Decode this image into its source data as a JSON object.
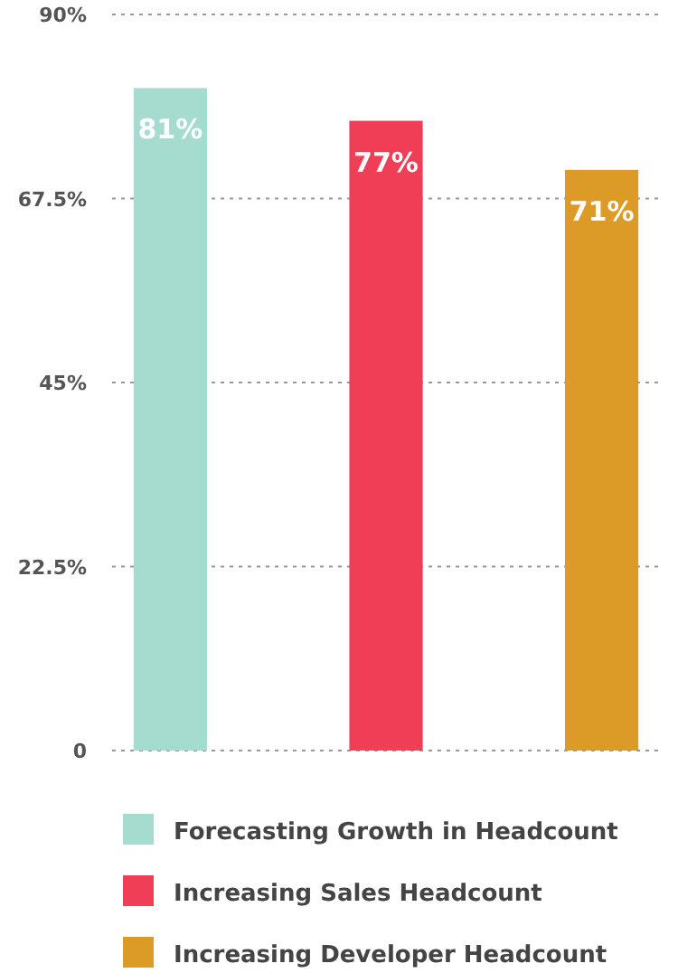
{
  "chart_data": {
    "type": "bar",
    "categories": [
      null,
      null,
      null
    ],
    "series": [
      {
        "name": "Forecasting Growth in Headcount",
        "color": "#a6dccf",
        "values": [
          81,
          null,
          null
        ],
        "value_labels": [
          "81%",
          null,
          null
        ]
      },
      {
        "name": "Increasing Sales Headcount",
        "color": "#ef3e56",
        "values": [
          null,
          77,
          null
        ],
        "value_labels": [
          null,
          "77%",
          null
        ]
      },
      {
        "name": "Increasing Developer Headcount",
        "color": "#dc9a26",
        "values": [
          null,
          null,
          71
        ],
        "value_labels": [
          null,
          null,
          "71%"
        ]
      }
    ],
    "ylim": [
      0,
      90
    ],
    "yticks": [
      0,
      {
        "value": 22.5,
        "label": "22.5%"
      },
      {
        "value": 45,
        "label": "45%"
      },
      {
        "value": 67.5,
        "label": "67.5%"
      },
      {
        "value": 90,
        "label": "90%"
      }
    ],
    "grid": "y",
    "legend": "bottom"
  }
}
